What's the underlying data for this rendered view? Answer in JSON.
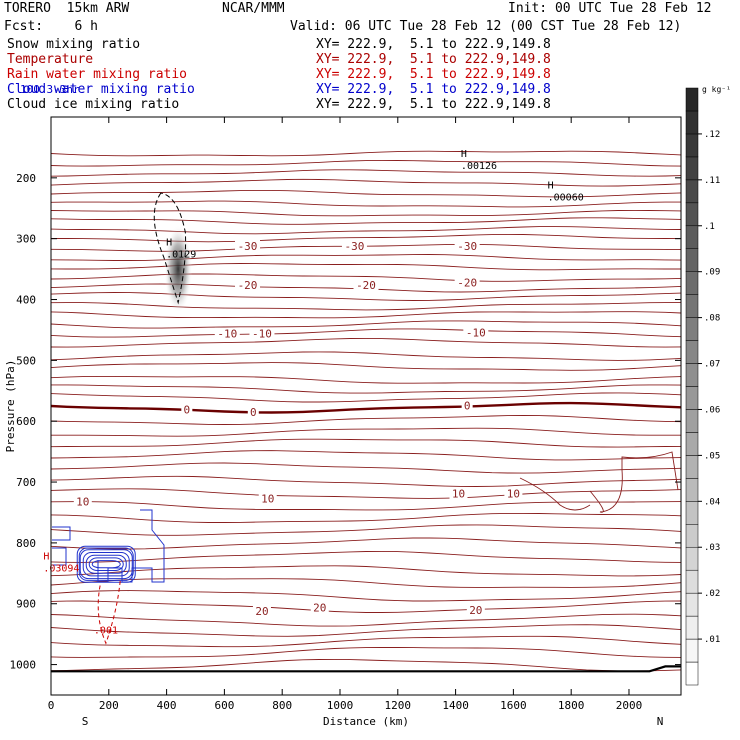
{
  "header": {
    "model": "TORERO  15km ARW",
    "center": "NCAR/MMM",
    "init": "Init: 00 UTC Tue 28 Feb 12",
    "fcst": "Fcst:    6 h",
    "valid": "Valid: 06 UTC Tue 28 Feb 12 (00 CST Tue 28 Feb 12)",
    "extra_text": "100 3-3hr",
    "fields": [
      {
        "label": "Snow mixing ratio",
        "xy": "XY= 222.9,  5.1 to 222.9,149.8",
        "color": "#000000"
      },
      {
        "label": "Temperature",
        "xy": "XY= 222.9,  5.1 to 222.9,149.8",
        "color": "#aa0000"
      },
      {
        "label": "Rain water mixing ratio",
        "xy": "XY= 222.9,  5.1 to 222.9,149.8",
        "color": "#cc0000"
      },
      {
        "label": "Cloud water mixing ratio",
        "xy": "XY= 222.9,  5.1 to 222.9,149.8",
        "color": "#0000cc"
      },
      {
        "label": "Cloud ice mixing ratio",
        "xy": "XY= 222.9,  5.1 to 222.9,149.8",
        "color": "#000000"
      }
    ]
  },
  "chart_data": {
    "type": "contour-cross-section",
    "xlabel": "Distance (km)",
    "ylabel": "Pressure (hPa)",
    "xlim": [
      0,
      2180
    ],
    "ylim": [
      1050,
      100
    ],
    "x_ticks": [
      0,
      200,
      400,
      600,
      800,
      1000,
      1200,
      1400,
      1600,
      1800,
      2000
    ],
    "y_ticks": [
      200,
      300,
      400,
      500,
      600,
      700,
      800,
      900,
      1000
    ],
    "endpoints": {
      "left": "S",
      "right": "N"
    },
    "colorbar": {
      "unit": "g kg⁻¹",
      "ticks": [
        ".01",
        ".02",
        ".03",
        ".04",
        ".05",
        ".06",
        ".07",
        ".08",
        ".09",
        ".1",
        ".11",
        ".12"
      ],
      "fill_levels": [
        0,
        0.005,
        0.01,
        0.015,
        0.02,
        0.025,
        0.03,
        0.035,
        0.04,
        0.045,
        0.05,
        0.055,
        0.06,
        0.065,
        0.07,
        0.075,
        0.08,
        0.085,
        0.09,
        0.095,
        0.1,
        0.105,
        0.11,
        0.115,
        0.12,
        0.125,
        0.13
      ]
    },
    "temperature_labels": [
      {
        "text": "-30",
        "x": 680,
        "p": 312
      },
      {
        "text": "-30",
        "x": 1050,
        "p": 312
      },
      {
        "text": "-30",
        "x": 1440,
        "p": 312
      },
      {
        "text": "-20",
        "x": 680,
        "p": 376
      },
      {
        "text": "-20",
        "x": 1090,
        "p": 376
      },
      {
        "text": "-20",
        "x": 1440,
        "p": 372
      },
      {
        "text": "-10",
        "x": 610,
        "p": 456
      },
      {
        "text": "-10",
        "x": 730,
        "p": 456
      },
      {
        "text": "-10",
        "x": 1470,
        "p": 454
      },
      {
        "text": "0",
        "x": 470,
        "p": 581
      },
      {
        "text": "0",
        "x": 700,
        "p": 585
      },
      {
        "text": "0",
        "x": 1440,
        "p": 574
      },
      {
        "text": "10",
        "x": 110,
        "p": 732
      },
      {
        "text": "10",
        "x": 750,
        "p": 727
      },
      {
        "text": "10",
        "x": 1410,
        "p": 719
      },
      {
        "text": "10",
        "x": 1600,
        "p": 719
      },
      {
        "text": "20",
        "x": 730,
        "p": 912
      },
      {
        "text": "20",
        "x": 930,
        "p": 906
      },
      {
        "text": "20",
        "x": 1470,
        "p": 910
      }
    ],
    "maxima": [
      {
        "text": "H",
        "value": ".0129",
        "x": 440,
        "p": 318,
        "color": "#000000"
      },
      {
        "text": "H",
        "value": ".00126",
        "x": 1460,
        "p": 172,
        "color": "#000000"
      },
      {
        "text": "H",
        "value": ".00060",
        "x": 1760,
        "p": 224,
        "color": "#000000"
      },
      {
        "text": "H",
        "value": ".03094",
        "x": 15,
        "p": 834,
        "color": "#cc0000"
      },
      {
        "text": "",
        "value": ".001",
        "x": 190,
        "p": 936,
        "color": "#cc0000"
      }
    ]
  }
}
